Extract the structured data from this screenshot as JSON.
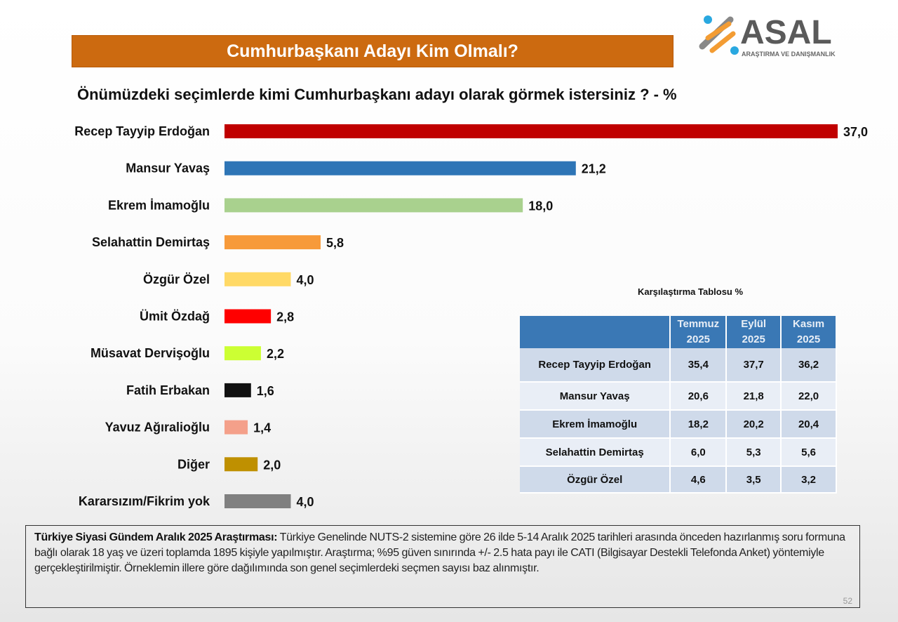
{
  "header": {
    "title": "Cumhurbaşkanı Adayı Kim Olmalı?",
    "logo_text": "ASAL",
    "logo_subtext": "ARAŞTIRMA VE DANIŞMANLIK"
  },
  "chart_data": {
    "type": "bar",
    "orientation": "horizontal",
    "title": "Önümüzdeki seçimlerde kimi Cumhurbaşkanı adayı olarak görmek istersiniz ? - %",
    "categories": [
      "Recep Tayyip Erdoğan",
      "Mansur Yavaş",
      "Ekrem İmamoğlu",
      "Selahattin Demirtaş",
      "Özgür Özel",
      "Ümit Özdağ",
      "Müsavat Dervişoğlu",
      "Fatih Erbakan",
      "Yavuz Ağıralioğlu",
      "Diğer",
      "Kararsızım/Fikrim yok"
    ],
    "values": [
      37.0,
      21.2,
      18.0,
      5.8,
      4.0,
      2.8,
      2.2,
      1.6,
      1.4,
      2.0,
      4.0
    ],
    "labels": [
      "37,0",
      "21,2",
      "18,0",
      "5,8",
      "4,0",
      "2,8",
      "2,2",
      "1,6",
      "1,4",
      "2,0",
      "4,0"
    ],
    "colors": [
      "#c00000",
      "#2e75b6",
      "#a9d18e",
      "#f79a3a",
      "#ffd966",
      "#ff0000",
      "#ccff33",
      "#111111",
      "#f4a08a",
      "#bf9000",
      "#808080"
    ],
    "xlim": [
      0,
      37
    ],
    "grid": false,
    "legend": "none"
  },
  "comparison": {
    "title": "Karşılaştırma Tablosu %",
    "columns": [
      [
        "Temmuz",
        "2025"
      ],
      [
        "Eylül",
        "2025"
      ],
      [
        "Kasım",
        "2025"
      ]
    ],
    "rows": [
      {
        "name": "Recep Tayyip Erdoğan",
        "values": [
          "35,4",
          "37,7",
          "36,2"
        ]
      },
      {
        "name": "Mansur Yavaş",
        "values": [
          "20,6",
          "21,8",
          "22,0"
        ]
      },
      {
        "name": "Ekrem İmamoğlu",
        "values": [
          "18,2",
          "20,2",
          "20,4"
        ]
      },
      {
        "name": "Selahattin Demirtaş",
        "values": [
          "6,0",
          "5,3",
          "5,6"
        ]
      },
      {
        "name": "Özgür Özel",
        "values": [
          "4,6",
          "3,5",
          "3,2"
        ]
      }
    ]
  },
  "footer": {
    "bold": "Türkiye Siyasi Gündem Aralık 2025 Araştırması:",
    "text": " Türkiye Genelinde NUTS-2 sistemine göre 26 ilde 5-14 Aralık 2025 tarihleri arasında önceden hazırlanmış soru formuna bağlı olarak 18 yaş ve üzeri toplamda 1895 kişiyle yapılmıştır. Araştırma; %95 güven sınırında +/- 2.5 hata payı ile CATI (Bilgisayar Destekli Telefonda Anket) yöntemiyle gerçekleştirilmiştir. Örneklemin illere göre dağılımında son genel seçimlerdeki seçmen sayısı baz alınmıştır.",
    "page": "52"
  }
}
